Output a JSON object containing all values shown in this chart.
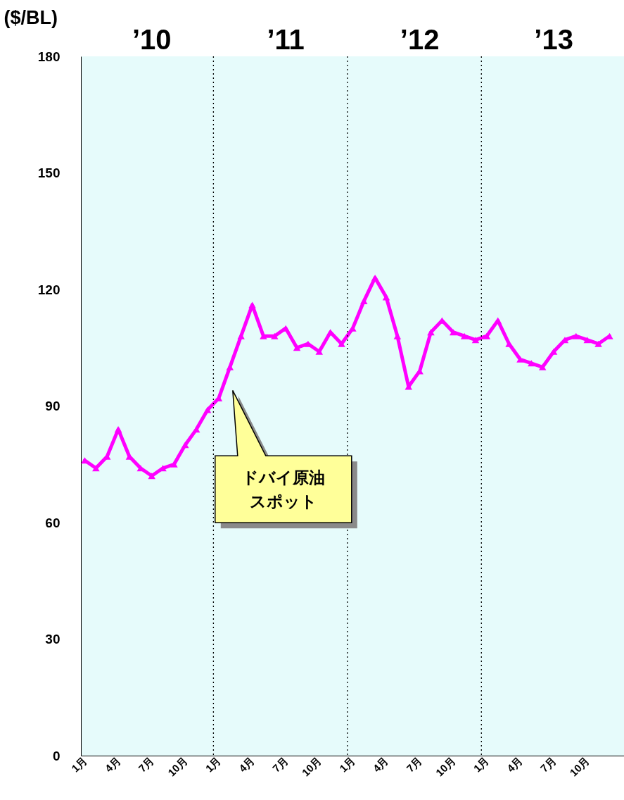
{
  "chart_data": {
    "type": "line",
    "ylabel": "($/BL)",
    "x": [
      "2010-01",
      "2010-02",
      "2010-03",
      "2010-04",
      "2010-05",
      "2010-06",
      "2010-07",
      "2010-08",
      "2010-09",
      "2010-10",
      "2010-11",
      "2010-12",
      "2011-01",
      "2011-02",
      "2011-03",
      "2011-04",
      "2011-05",
      "2011-06",
      "2011-07",
      "2011-08",
      "2011-09",
      "2011-10",
      "2011-11",
      "2011-12",
      "2012-01",
      "2012-02",
      "2012-03",
      "2012-04",
      "2012-05",
      "2012-06",
      "2012-07",
      "2012-08",
      "2012-09",
      "2012-10",
      "2012-11",
      "2012-12",
      "2013-01",
      "2013-02",
      "2013-03",
      "2013-04",
      "2013-05",
      "2013-06",
      "2013-07",
      "2013-08",
      "2013-09",
      "2013-10",
      "2013-11",
      "2013-12"
    ],
    "series": [
      {
        "name": "ドバイ原油スポット",
        "color": "#ff00ff",
        "values": [
          76,
          74,
          77,
          84,
          77,
          74,
          72,
          74,
          75,
          80,
          84,
          89,
          92,
          100,
          108,
          116,
          108,
          108,
          110,
          105,
          106,
          104,
          109,
          106,
          110,
          117,
          123,
          118,
          108,
          95,
          99,
          109,
          112,
          109,
          108,
          107,
          108,
          112,
          106,
          102,
          101,
          100,
          104,
          107,
          108,
          107,
          106,
          108
        ]
      }
    ],
    "xlim": [
      "2009-12-21",
      "2014-01-10"
    ],
    "xticks": [
      {
        "value": "2010-01",
        "label": "1月"
      },
      {
        "value": "2010-04",
        "label": "4月"
      },
      {
        "value": "2010-07",
        "label": "7月"
      },
      {
        "value": "2010-10",
        "label": "10月"
      },
      {
        "value": "2011-01",
        "label": "1月"
      },
      {
        "value": "2011-04",
        "label": "4月"
      },
      {
        "value": "2011-07",
        "label": "7月"
      },
      {
        "value": "2011-10",
        "label": "10月"
      },
      {
        "value": "2012-01",
        "label": "1月"
      },
      {
        "value": "2012-04",
        "label": "4月"
      },
      {
        "value": "2012-07",
        "label": "7月"
      },
      {
        "value": "2012-10",
        "label": "10月"
      },
      {
        "value": "2013-01",
        "label": "1月"
      },
      {
        "value": "2013-04",
        "label": "4月"
      },
      {
        "value": "2013-07",
        "label": "7月"
      },
      {
        "value": "2013-10",
        "label": "10月"
      }
    ],
    "x2lim": [
      "2009-12-21",
      "2014-01-10"
    ],
    "x2ticks": [
      {
        "value": "2010-07-01",
        "label": "’10"
      },
      {
        "value": "2011-07-01",
        "label": "’11"
      },
      {
        "value": "2012-07-01",
        "label": "’12"
      },
      {
        "value": "2013-07-01",
        "label": "’13"
      }
    ],
    "ylim": [
      0,
      180
    ],
    "yticks": [
      0,
      30,
      60,
      90,
      120,
      150,
      180
    ],
    "ref_lines": [
      {
        "axis": "x",
        "value": "2010-12-17",
        "color": "#000000",
        "line_style": "dotted"
      },
      {
        "axis": "x",
        "value": "2011-12-17",
        "color": "#000000",
        "line_style": "dotted"
      },
      {
        "axis": "x",
        "value": "2012-12-17",
        "color": "#000000",
        "line_style": "dotted"
      }
    ],
    "marker": "triangle",
    "line_style": "solid",
    "grid": false
  }
}
